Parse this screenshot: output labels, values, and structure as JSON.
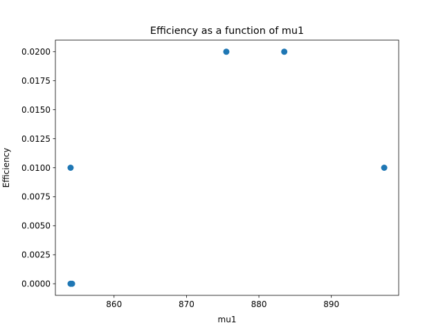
{
  "chart_data": {
    "type": "scatter",
    "title": "Efficiency as a function of mu1",
    "xlabel": "mu1",
    "ylabel": "Efficiency",
    "xlim": [
      851.9,
      899.3
    ],
    "ylim": [
      -0.001,
      0.021
    ],
    "xticks": [
      {
        "value": 860,
        "label": "860"
      },
      {
        "value": 870,
        "label": "870"
      },
      {
        "value": 880,
        "label": "880"
      },
      {
        "value": 890,
        "label": "890"
      }
    ],
    "yticks": [
      {
        "value": 0.0,
        "label": "0.0000"
      },
      {
        "value": 0.0025,
        "label": "0.0025"
      },
      {
        "value": 0.005,
        "label": "0.0050"
      },
      {
        "value": 0.0075,
        "label": "0.0075"
      },
      {
        "value": 0.01,
        "label": "0.0100"
      },
      {
        "value": 0.0125,
        "label": "0.0125"
      },
      {
        "value": 0.015,
        "label": "0.0150"
      },
      {
        "value": 0.0175,
        "label": "0.0175"
      },
      {
        "value": 0.02,
        "label": "0.0200"
      }
    ],
    "grid": false,
    "legend": "none",
    "marker_color": "#1f77b4",
    "series": [
      {
        "points": [
          {
            "x": 854.0,
            "y": 0.01
          },
          {
            "x": 854.0,
            "y": 0.0
          },
          {
            "x": 854.2,
            "y": 0.0
          },
          {
            "x": 875.5,
            "y": 0.02
          },
          {
            "x": 883.5,
            "y": 0.02
          },
          {
            "x": 897.3,
            "y": 0.01
          }
        ]
      }
    ]
  }
}
